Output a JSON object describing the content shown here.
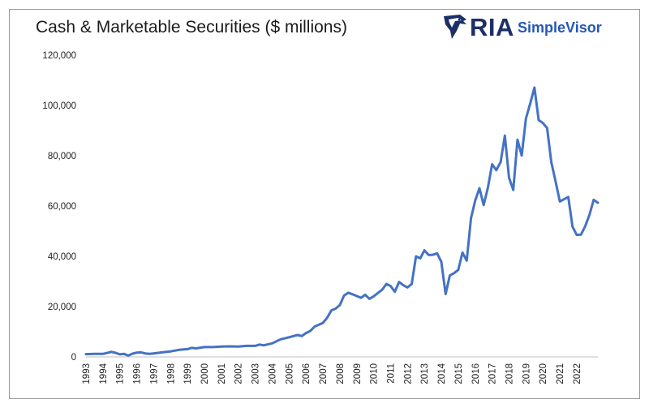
{
  "title": "Cash & Marketable Securities ($ millions)",
  "logo": {
    "ria": "RIA",
    "simplevisor": "SimpleVisor",
    "icon": "eagle-head-icon",
    "colors": {
      "ria": "#1c2f66",
      "simplevisor": "#2457b8"
    }
  },
  "chart_data": {
    "type": "line",
    "title": "Cash & Marketable Securities ($ millions)",
    "xlabel": "",
    "ylabel": "",
    "ylim": [
      0,
      120000
    ],
    "xlim": [
      1993,
      2022.75
    ],
    "grid": false,
    "legend": "none",
    "line_color": "#4472c4",
    "y_ticks": [
      "0",
      "20,000",
      "40,000",
      "60,000",
      "80,000",
      "100,000",
      "120,000"
    ],
    "y_tick_values": [
      0,
      20000,
      40000,
      60000,
      80000,
      100000,
      120000
    ],
    "x_ticks": [
      "1993",
      "1994",
      "1995",
      "1996",
      "1997",
      "1998",
      "1999",
      "2000",
      "2001",
      "2002",
      "2003",
      "2004",
      "2005",
      "2006",
      "2007",
      "2008",
      "2009",
      "2010",
      "2011",
      "2012",
      "2013",
      "2014",
      "2015",
      "2016",
      "2017",
      "2018",
      "2019",
      "2020",
      "2021",
      "2022"
    ],
    "series": [
      {
        "points": [
          [
            1993.0,
            1100
          ],
          [
            1993.5,
            1200
          ],
          [
            1994.0,
            1200
          ],
          [
            1994.5,
            2000
          ],
          [
            1994.75,
            1600
          ],
          [
            1995.0,
            1000
          ],
          [
            1995.25,
            1200
          ],
          [
            1995.5,
            500
          ],
          [
            1995.75,
            1300
          ],
          [
            1996.0,
            1700
          ],
          [
            1996.25,
            1800
          ],
          [
            1996.5,
            1400
          ],
          [
            1996.75,
            1200
          ],
          [
            1997.0,
            1400
          ],
          [
            1997.5,
            1800
          ],
          [
            1998.0,
            2200
          ],
          [
            1998.5,
            2800
          ],
          [
            1999.0,
            3100
          ],
          [
            1999.25,
            3600
          ],
          [
            1999.5,
            3400
          ],
          [
            2000.0,
            3900
          ],
          [
            2000.5,
            3900
          ],
          [
            2001.0,
            4100
          ],
          [
            2001.5,
            4200
          ],
          [
            2002.0,
            4100
          ],
          [
            2002.5,
            4400
          ],
          [
            2003.0,
            4400
          ],
          [
            2003.25,
            4900
          ],
          [
            2003.5,
            4600
          ],
          [
            2004.0,
            5400
          ],
          [
            2004.5,
            7000
          ],
          [
            2005.0,
            7800
          ],
          [
            2005.5,
            8700
          ],
          [
            2005.75,
            8300
          ],
          [
            2006.0,
            9500
          ],
          [
            2006.25,
            10300
          ],
          [
            2006.5,
            12000
          ],
          [
            2007.0,
            13500
          ],
          [
            2007.25,
            15500
          ],
          [
            2007.5,
            18500
          ],
          [
            2007.75,
            19200
          ],
          [
            2008.0,
            20600
          ],
          [
            2008.25,
            24400
          ],
          [
            2008.5,
            25500
          ],
          [
            2008.75,
            24900
          ],
          [
            2009.0,
            24200
          ],
          [
            2009.25,
            23500
          ],
          [
            2009.5,
            24700
          ],
          [
            2009.75,
            23100
          ],
          [
            2010.0,
            24100
          ],
          [
            2010.5,
            26700
          ],
          [
            2010.75,
            29000
          ],
          [
            2011.0,
            28200
          ],
          [
            2011.25,
            25900
          ],
          [
            2011.5,
            29800
          ],
          [
            2011.75,
            28500
          ],
          [
            2012.0,
            27600
          ],
          [
            2012.25,
            29000
          ],
          [
            2012.5,
            40000
          ],
          [
            2012.75,
            39200
          ],
          [
            2013.0,
            42400
          ],
          [
            2013.25,
            40500
          ],
          [
            2013.5,
            40600
          ],
          [
            2013.75,
            41200
          ],
          [
            2014.0,
            37800
          ],
          [
            2014.25,
            25000
          ],
          [
            2014.5,
            32400
          ],
          [
            2014.75,
            33300
          ],
          [
            2015.0,
            34600
          ],
          [
            2015.25,
            41500
          ],
          [
            2015.5,
            38300
          ],
          [
            2015.75,
            55200
          ],
          [
            2016.0,
            62200
          ],
          [
            2016.25,
            67100
          ],
          [
            2016.5,
            60400
          ],
          [
            2016.75,
            67300
          ],
          [
            2017.0,
            76600
          ],
          [
            2017.25,
            74300
          ],
          [
            2017.5,
            77500
          ],
          [
            2017.75,
            88000
          ],
          [
            2018.0,
            71200
          ],
          [
            2018.25,
            66400
          ],
          [
            2018.5,
            86400
          ],
          [
            2018.75,
            80100
          ],
          [
            2019.0,
            94800
          ],
          [
            2019.25,
            100800
          ],
          [
            2019.5,
            107100
          ],
          [
            2019.75,
            94200
          ],
          [
            2020.0,
            93000
          ],
          [
            2020.25,
            91000
          ],
          [
            2020.5,
            77400
          ],
          [
            2020.75,
            69700
          ],
          [
            2021.0,
            61800
          ],
          [
            2021.25,
            62700
          ],
          [
            2021.5,
            63600
          ],
          [
            2021.75,
            51800
          ],
          [
            2022.0,
            48500
          ],
          [
            2022.25,
            48600
          ],
          [
            2022.5,
            52000
          ],
          [
            2022.75,
            56500
          ],
          [
            2023.0,
            62500
          ],
          [
            2023.25,
            61300
          ]
        ]
      }
    ]
  }
}
